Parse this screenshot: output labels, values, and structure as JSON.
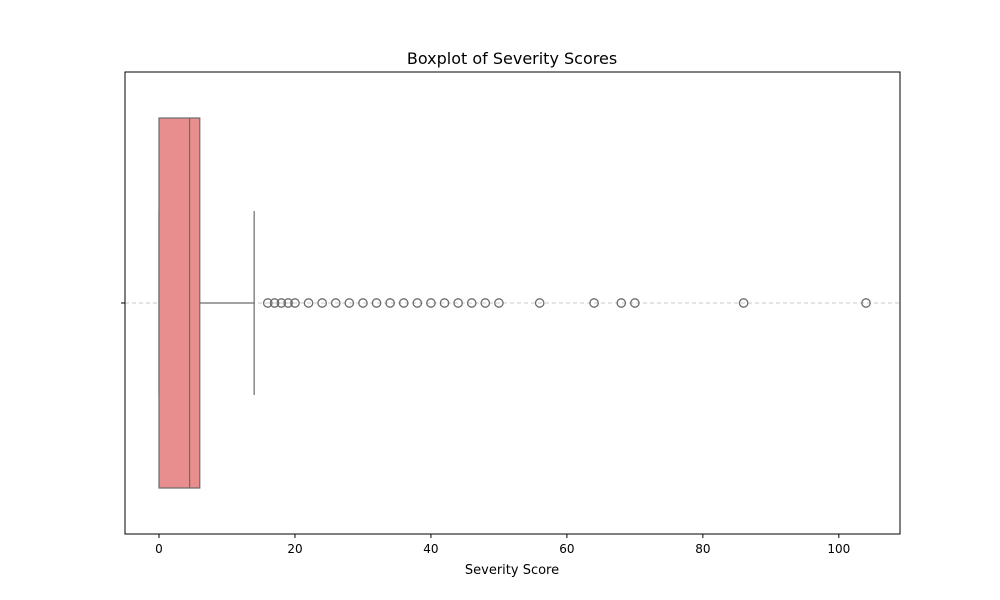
{
  "chart_data": {
    "type": "boxplot",
    "title": "Boxplot of Severity Scores",
    "xlabel": "Severity Score",
    "ylabel": "",
    "xlim": [
      -5,
      109
    ],
    "xticks": [
      0,
      20,
      40,
      60,
      80,
      100
    ],
    "xtick_labels": [
      "0",
      "20",
      "40",
      "60",
      "80",
      "100"
    ],
    "grid": "horizontal dashed line at center",
    "orientation": "horizontal",
    "box": {
      "whisker_low": 0,
      "q1": 0,
      "median": 4.5,
      "q3": 6,
      "whisker_high": 14,
      "fill_color": "#e88e8e",
      "line_color": "#6b6b6b"
    },
    "outliers": [
      16,
      17,
      18,
      19,
      20,
      22,
      24,
      26,
      28,
      30,
      32,
      34,
      36,
      38,
      40,
      42,
      44,
      46,
      48,
      50,
      56,
      64,
      68,
      70,
      86,
      104
    ]
  }
}
